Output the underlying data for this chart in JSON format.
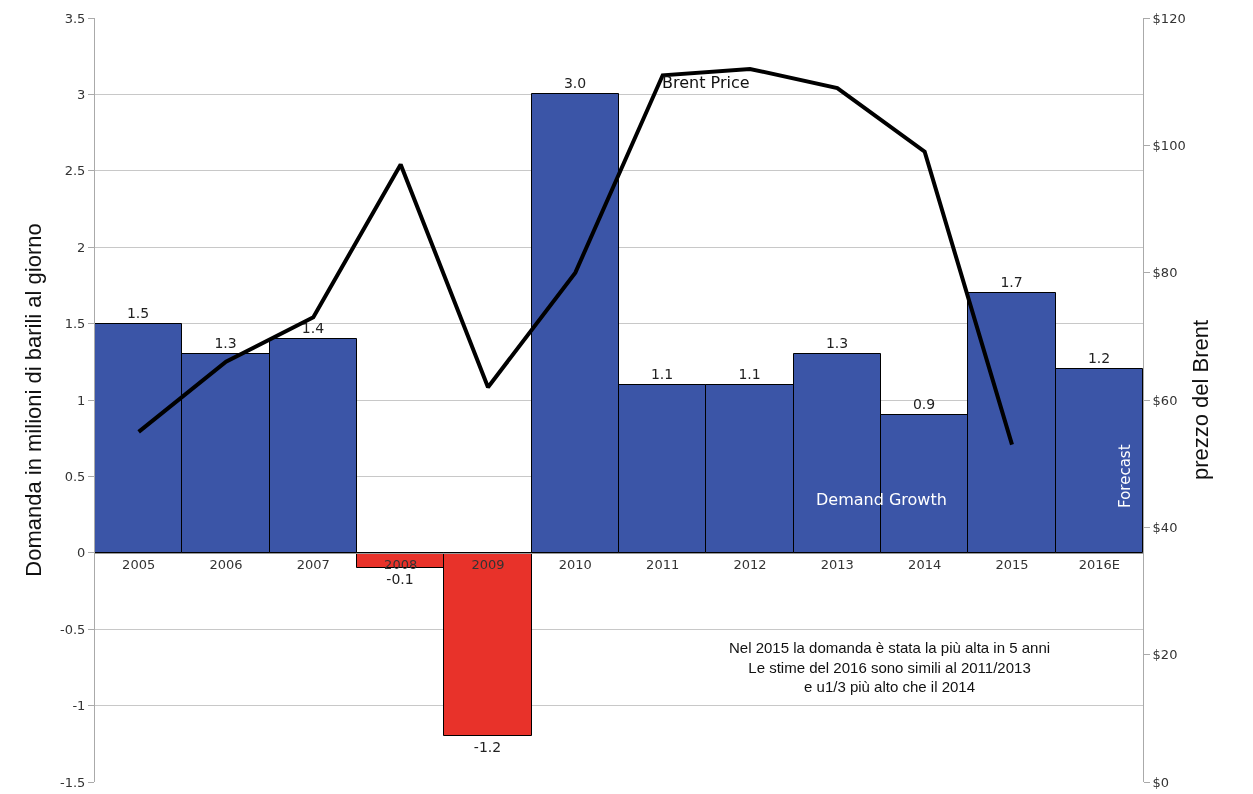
{
  "chart_data": {
    "type": "bar",
    "ylabel": "Domanda in milioni di barili al giorno",
    "y2label": "prezzo del Brent",
    "categories": [
      "2005",
      "2006",
      "2007",
      "2008",
      "2009",
      "2010",
      "2011",
      "2012",
      "2013",
      "2014",
      "2015",
      "2016E"
    ],
    "series": [
      {
        "name": "Demand Growth",
        "colors": [
          "#3b55a7",
          "#3b55a7",
          "#3b55a7",
          "#e8322a",
          "#e8322a",
          "#3b55a7",
          "#3b55a7",
          "#3b55a7",
          "#3b55a7",
          "#3b55a7",
          "#3b55a7",
          "#3b55a7"
        ],
        "values": [
          1.5,
          1.3,
          1.4,
          -0.1,
          -1.2,
          3.0,
          1.1,
          1.1,
          1.3,
          0.9,
          1.7,
          1.2
        ],
        "value_labels": [
          "1.5",
          "1.3",
          "1.4",
          "-0.1",
          "-1.2",
          "3.0",
          "1.1",
          "1.1",
          "1.3",
          "0.9",
          "1.7",
          "1.2"
        ]
      },
      {
        "name": "Brent Price",
        "type": "line",
        "axis": "y2",
        "color": "#000000",
        "values": [
          55,
          66,
          73,
          97,
          62,
          80,
          111,
          112,
          109,
          99,
          53,
          null
        ]
      }
    ],
    "ylim": [
      -1.5,
      3.5
    ],
    "yticks": [
      -1.5,
      -1,
      -0.5,
      0,
      0.5,
      1,
      1.5,
      2,
      2.5,
      3,
      3.5
    ],
    "y2lim": [
      0,
      120
    ],
    "y2ticks": [
      {
        "value": 0,
        "label": "$0"
      },
      {
        "value": 20,
        "label": "$20"
      },
      {
        "value": 40,
        "label": "$40"
      },
      {
        "value": 60,
        "label": "$60"
      },
      {
        "value": 80,
        "label": "$80"
      },
      {
        "value": 100,
        "label": "$100"
      },
      {
        "value": 120,
        "label": "$120"
      }
    ],
    "grid": "y",
    "legend": false,
    "marker": "none",
    "line_style": "solid",
    "annotations": [
      "Forecast",
      "Nel 2015 la domanda è stata la più alta in 5 anni\nLe stime del 2016 sono simili al 2011/2013\ne u1/3 più alto che il 2014"
    ]
  }
}
